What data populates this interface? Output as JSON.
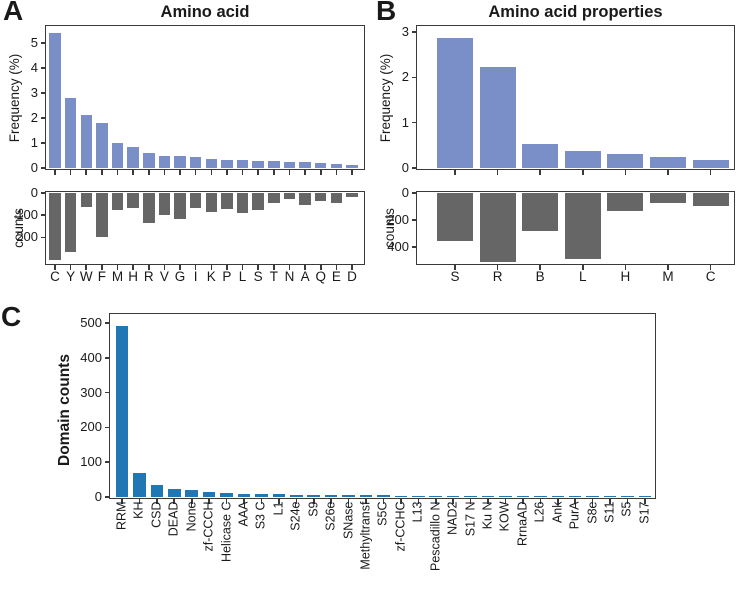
{
  "panels": {
    "a": {
      "label": "A"
    },
    "b": {
      "label": "B"
    },
    "c": {
      "label": "C"
    }
  },
  "colors": {
    "frequency_bar": "#7a8ec8",
    "counts_bar": "#666666",
    "domain_bar": "#2177b4",
    "spine": "#3a3a3a",
    "text": "#1a1a1a",
    "background": "#ffffff"
  },
  "chart_data": [
    {
      "id": "a_freq",
      "panel": "A",
      "type": "bar",
      "title": "Amino acid",
      "ylabel": "Frequency (%)",
      "bar_color": "#7a8ec8",
      "categories": [
        "C",
        "Y",
        "W",
        "F",
        "M",
        "H",
        "R",
        "V",
        "G",
        "I",
        "K",
        "P",
        "L",
        "S",
        "T",
        "N",
        "A",
        "Q",
        "E",
        "D"
      ],
      "values": [
        5.4,
        2.8,
        2.12,
        1.8,
        1.0,
        0.84,
        0.62,
        0.5,
        0.48,
        0.45,
        0.35,
        0.34,
        0.32,
        0.3,
        0.28,
        0.26,
        0.23,
        0.21,
        0.17,
        0.13
      ],
      "ylim": [
        0,
        5.64
      ],
      "yticks": [
        0,
        1,
        2,
        3,
        4,
        5
      ],
      "orientation": "up",
      "grid": false,
      "show_category_labels": false
    },
    {
      "id": "a_counts",
      "panel": "A",
      "type": "bar",
      "title": "",
      "ylabel": "counts",
      "bar_color": "#666666",
      "categories": [
        "C",
        "Y",
        "W",
        "F",
        "M",
        "H",
        "R",
        "V",
        "G",
        "I",
        "K",
        "P",
        "L",
        "S",
        "T",
        "N",
        "A",
        "Q",
        "E",
        "D"
      ],
      "values": [
        300,
        265,
        62,
        200,
        76,
        66,
        133,
        98,
        116,
        68,
        85,
        72,
        92,
        78,
        44,
        28,
        52,
        34,
        43,
        18
      ],
      "ylim": [
        0,
        315
      ],
      "yticks": [
        0,
        100,
        200
      ],
      "orientation": "down",
      "grid": false,
      "show_category_labels": true
    },
    {
      "id": "b_freq",
      "panel": "B",
      "type": "bar",
      "title": "Amino acid properties",
      "ylabel": "Frequency (%)",
      "bar_color": "#7a8ec8",
      "categories": [
        "S",
        "R",
        "B",
        "L",
        "H",
        "M",
        "C"
      ],
      "values": [
        2.87,
        2.22,
        0.53,
        0.38,
        0.3,
        0.24,
        0.17
      ],
      "ylim": [
        0,
        3.11
      ],
      "yticks": [
        0,
        1,
        2,
        3
      ],
      "orientation": "up",
      "grid": false,
      "show_category_labels": false
    },
    {
      "id": "b_counts",
      "panel": "B",
      "type": "bar",
      "title": "",
      "ylabel": "counts",
      "bar_color": "#666666",
      "categories": [
        "S",
        "R",
        "B",
        "L",
        "H",
        "M",
        "C"
      ],
      "values": [
        355,
        512,
        281,
        487,
        132,
        77,
        94
      ],
      "ylim": [
        0,
        520
      ],
      "yticks": [
        0,
        200,
        400
      ],
      "orientation": "down",
      "grid": false,
      "show_category_labels": true
    },
    {
      "id": "c_domains",
      "panel": "C",
      "type": "bar",
      "title": "",
      "ylabel": "Domain counts",
      "bar_color": "#2177b4",
      "categories": [
        "RRM",
        "KH",
        "CSD",
        "DEAD",
        "None",
        "zf-CCCH",
        "Helicase C",
        "AAA",
        "S3 C",
        "L1",
        "S24e",
        "S9",
        "S26e",
        "SNase",
        "Methyltransf",
        "S5C",
        "zf-CCHC",
        "L13",
        "Pescadillo N",
        "NAD2",
        "S17 N",
        "Ku N",
        "KOW",
        "RrnaAD",
        "L26",
        "Ank",
        "PurA",
        "S8e",
        "S11",
        "S5",
        "S17"
      ],
      "values": [
        490,
        70,
        35,
        23,
        20,
        14,
        11,
        9,
        8,
        8,
        7,
        6,
        6,
        6,
        5,
        5,
        4,
        4,
        4,
        4,
        3,
        3,
        3,
        3,
        3,
        3,
        2,
        2,
        2,
        2,
        2
      ],
      "ylim": [
        0,
        523
      ],
      "yticks": [
        0,
        100,
        200,
        300,
        400,
        500
      ],
      "orientation": "up",
      "grid": false,
      "show_category_labels": true,
      "category_label_rotation": 90
    }
  ]
}
